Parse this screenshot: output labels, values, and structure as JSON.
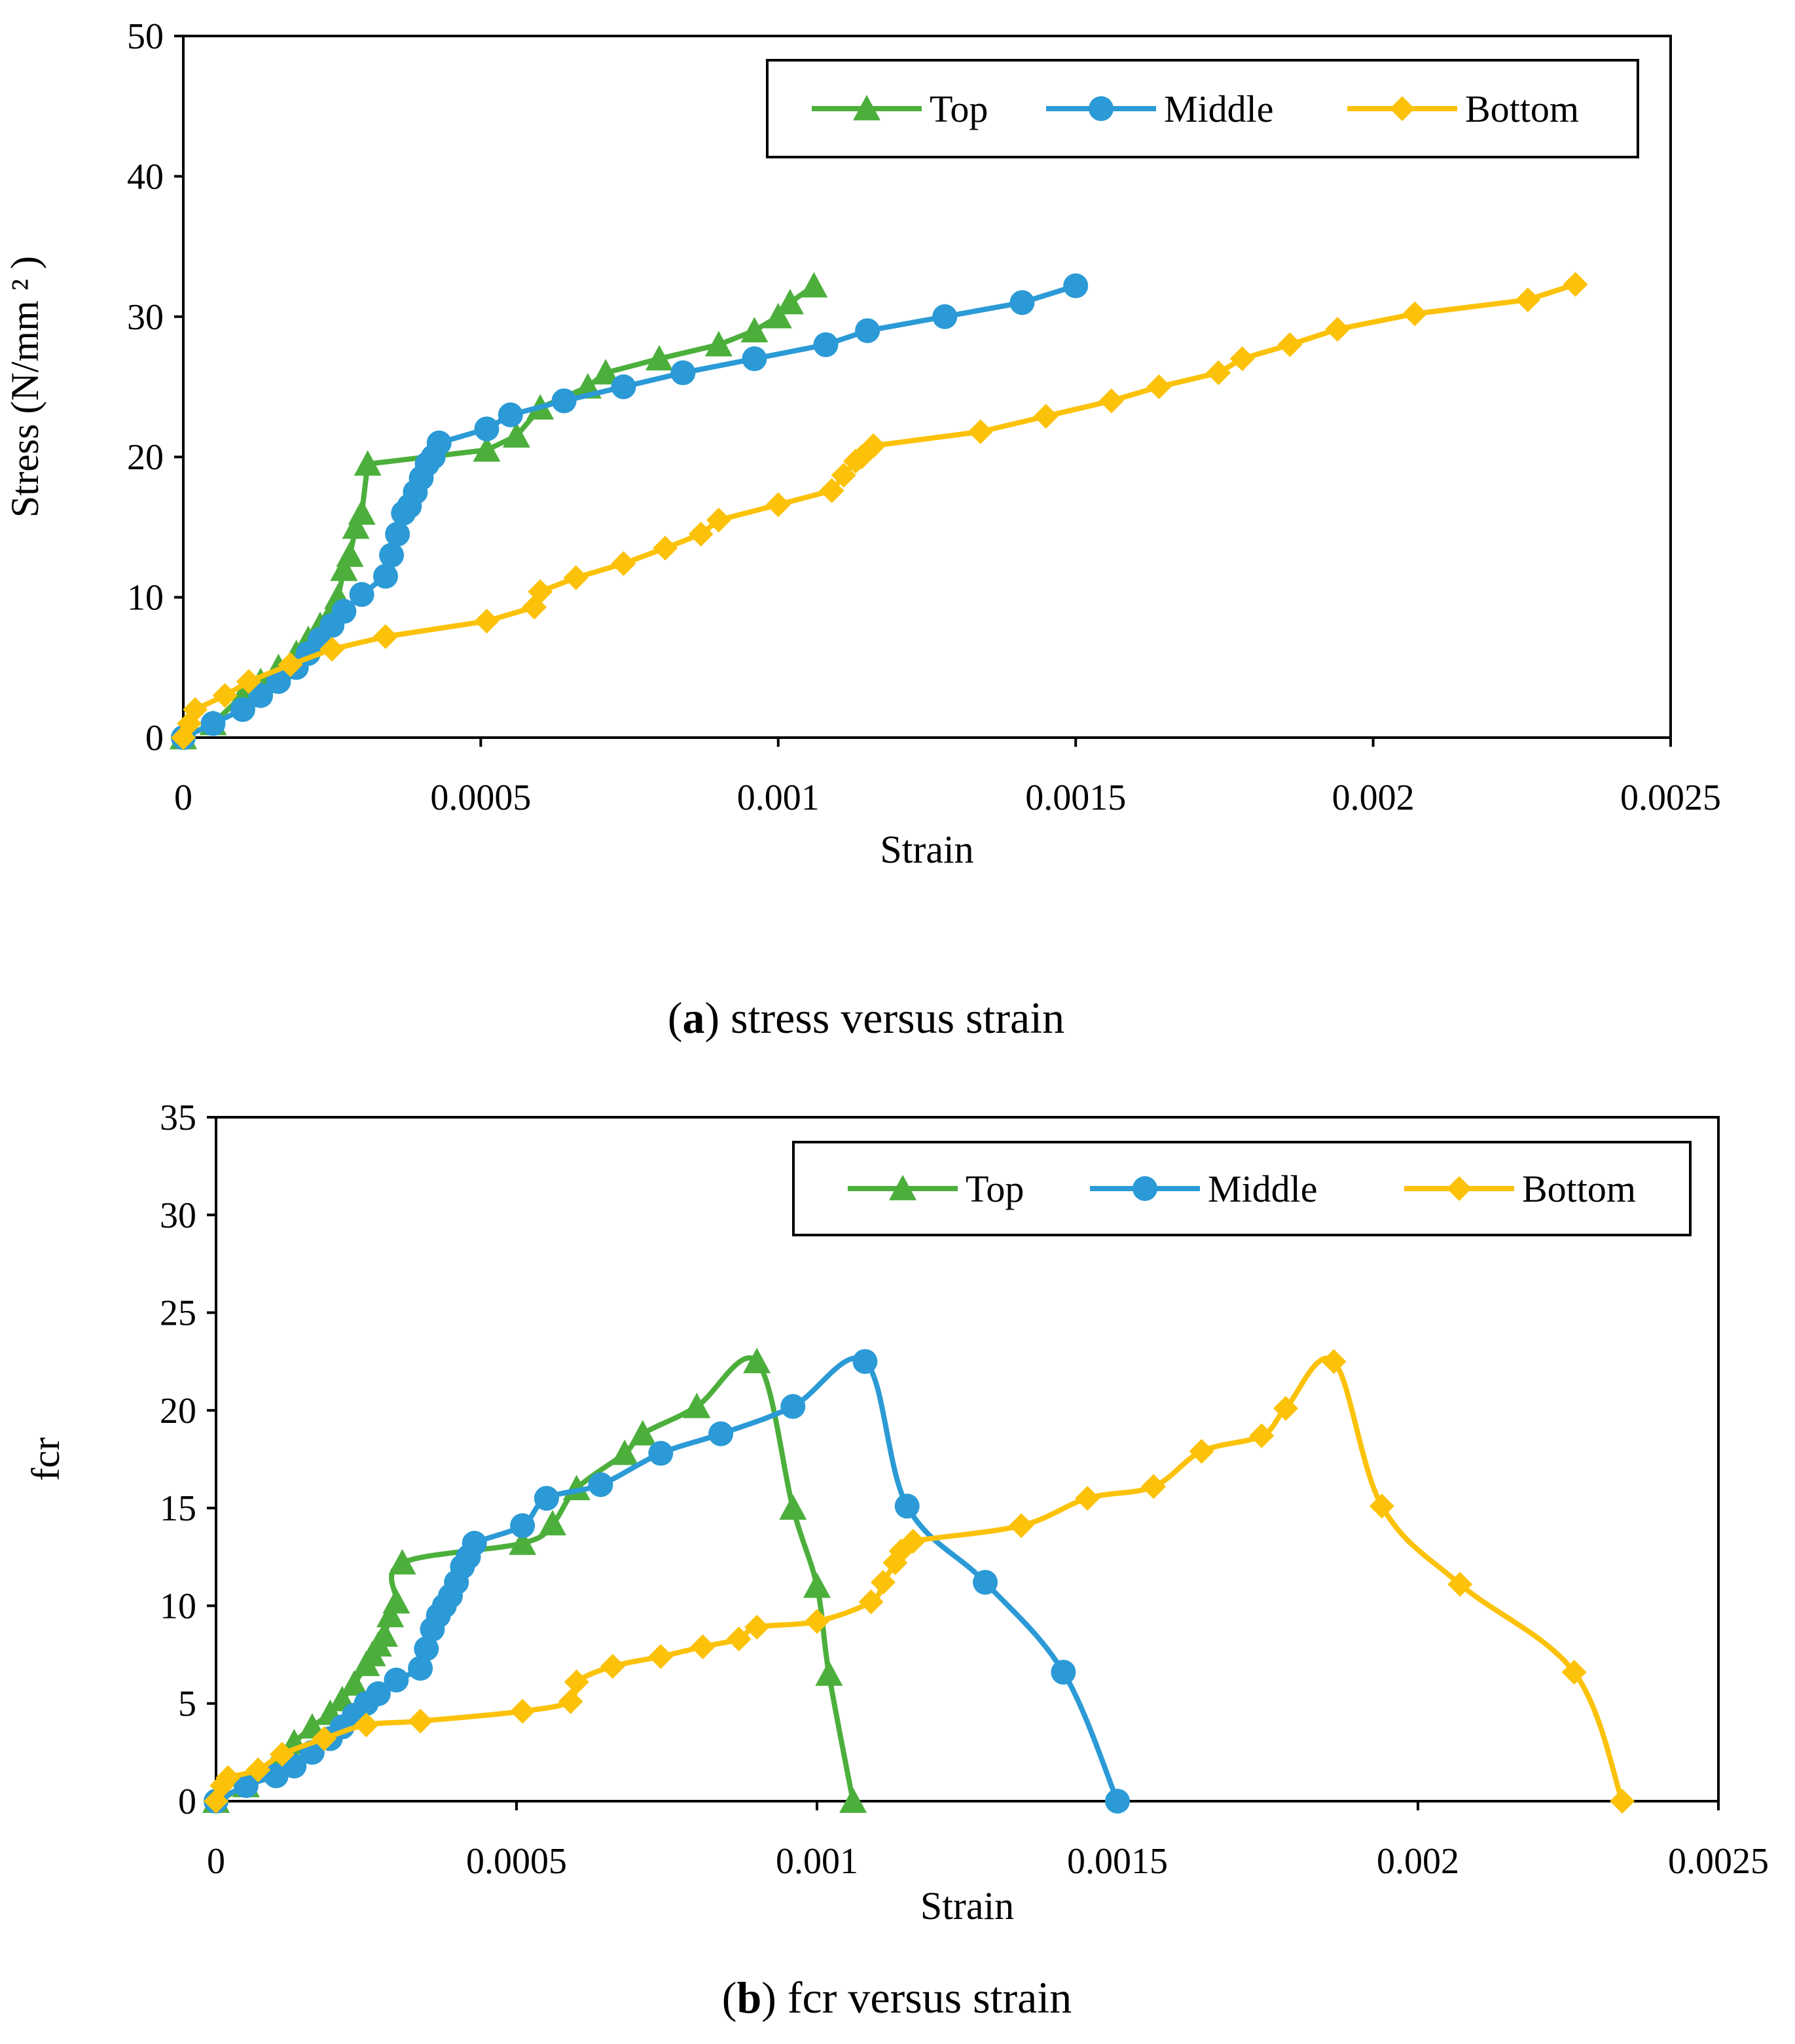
{
  "captions": {
    "a": {
      "letter": "a",
      "text": ") stress versus strain",
      "open": "("
    },
    "b": {
      "letter": "b",
      "text": ") fcr versus strain",
      "open": "("
    }
  },
  "colors": {
    "top": "#4caf3c",
    "middle": "#2b9ad6",
    "bottom": "#fcc20a"
  },
  "chart_data": [
    {
      "id": "a",
      "type": "line",
      "xlabel": "Strain",
      "ylabel": "Stress (N/mm ² )",
      "xlim": [
        0,
        0.0025
      ],
      "ylim": [
        0,
        50
      ],
      "xticks": [
        "0",
        "0.0005",
        "0.001",
        "0.0015",
        "0.002",
        "0.0025"
      ],
      "xtickvals": [
        0,
        0.0005,
        0.001,
        0.0015,
        0.002,
        0.0025
      ],
      "yticks": [
        "0",
        "10",
        "20",
        "30",
        "40",
        "50"
      ],
      "ytickvals": [
        0,
        10,
        20,
        30,
        40,
        50
      ],
      "legend": "top-right",
      "series": [
        {
          "name": "Top",
          "marker": "triangle",
          "smooth": false,
          "x": [
            0,
            5e-05,
            0.0001,
            0.00013,
            0.00016,
            0.00019,
            0.00021,
            0.00023,
            0.00025,
            0.00026,
            0.00027,
            0.00028,
            0.00029,
            0.0003,
            0.00031,
            0.00051,
            0.00056,
            0.0006,
            0.00068,
            0.00071,
            0.0008,
            0.0009,
            0.00096,
            0.001,
            0.00102,
            0.00106
          ],
          "y": [
            0,
            1,
            3,
            4,
            5,
            6,
            7,
            8,
            9,
            10,
            12,
            13,
            15,
            16,
            19.5,
            20.5,
            21.5,
            23.5,
            25,
            26,
            27,
            28,
            29,
            30,
            31,
            32.2
          ]
        },
        {
          "name": "Middle",
          "marker": "circle",
          "smooth": false,
          "x": [
            0,
            5e-05,
            0.0001,
            0.00013,
            0.00016,
            0.00019,
            0.00021,
            0.00023,
            0.00025,
            0.00027,
            0.0003,
            0.00034,
            0.00035,
            0.00036,
            0.00037,
            0.00038,
            0.00039,
            0.0004,
            0.00041,
            0.00042,
            0.00043,
            0.00051,
            0.00055,
            0.00064,
            0.00074,
            0.00084,
            0.00096,
            0.00108,
            0.00115,
            0.00128,
            0.00141,
            0.0015
          ],
          "y": [
            0,
            1,
            2,
            3,
            4,
            5,
            6,
            7,
            8,
            9,
            10.2,
            11.5,
            13,
            14.5,
            16,
            16.5,
            17.5,
            18.5,
            19.5,
            20,
            21,
            22,
            23,
            24,
            25,
            26,
            27,
            28,
            29,
            30,
            31,
            32.2
          ]
        },
        {
          "name": "Bottom",
          "marker": "diamond",
          "smooth": false,
          "x": [
            0,
            1e-05,
            2e-05,
            7e-05,
            0.00011,
            0.00018,
            0.00025,
            0.00034,
            0.00051,
            0.00059,
            0.0006,
            0.00066,
            0.00074,
            0.00081,
            0.00087,
            0.0009,
            0.001,
            0.00109,
            0.00111,
            0.00113,
            0.00114,
            0.00116,
            0.00134,
            0.00145,
            0.00156,
            0.00164,
            0.00174,
            0.00178,
            0.00186,
            0.00194,
            0.00207,
            0.00226,
            0.00234
          ],
          "y": [
            0,
            1,
            2,
            3,
            4,
            5.2,
            6.3,
            7.2,
            8.3,
            9.3,
            10.4,
            11.4,
            12.4,
            13.5,
            14.5,
            15.5,
            16.6,
            17.6,
            18.7,
            19.7,
            20,
            20.8,
            21.8,
            22.9,
            24,
            25,
            26,
            27,
            28,
            29.1,
            30.2,
            31.2,
            32.3
          ]
        }
      ]
    },
    {
      "id": "b",
      "type": "line",
      "xlabel": "Strain",
      "ylabel": "fcr",
      "xlim": [
        0,
        0.0025
      ],
      "ylim": [
        0,
        35
      ],
      "xticks": [
        "0",
        "0.0005",
        "0.001",
        "0.0015",
        "0.002",
        "0.0025"
      ],
      "xtickvals": [
        0,
        0.0005,
        0.001,
        0.0015,
        0.002,
        0.0025
      ],
      "yticks": [
        "0",
        "5",
        "10",
        "15",
        "20",
        "25",
        "30",
        "35"
      ],
      "ytickvals": [
        0,
        5,
        10,
        15,
        20,
        25,
        30,
        35
      ],
      "legend": "top-right",
      "series": [
        {
          "name": "Top",
          "marker": "triangle",
          "smooth": true,
          "x": [
            0,
            5e-05,
            0.0001,
            0.00013,
            0.00016,
            0.00019,
            0.00021,
            0.00023,
            0.00025,
            0.00026,
            0.00027,
            0.00028,
            0.00029,
            0.0003,
            0.00031,
            0.00051,
            0.00056,
            0.0006,
            0.00068,
            0.00071,
            0.0008,
            0.0009,
            0.00096,
            0.001,
            0.00102,
            0.00106
          ],
          "y": [
            0,
            0.8,
            2,
            3,
            3.8,
            4.5,
            5.2,
            6,
            7,
            7.5,
            8,
            8.5,
            9.5,
            10.2,
            12.2,
            13.2,
            14.2,
            16,
            17.8,
            18.8,
            20.2,
            22.5,
            15,
            11,
            6.5,
            0
          ]
        },
        {
          "name": "Middle",
          "marker": "circle",
          "smooth": true,
          "x": [
            0,
            5e-05,
            0.0001,
            0.00013,
            0.00016,
            0.00019,
            0.00021,
            0.00023,
            0.00025,
            0.00027,
            0.0003,
            0.00034,
            0.00035,
            0.00036,
            0.00037,
            0.00038,
            0.00039,
            0.0004,
            0.00041,
            0.00042,
            0.00043,
            0.00051,
            0.00055,
            0.00064,
            0.00074,
            0.00084,
            0.00096,
            0.00108,
            0.00115,
            0.00128,
            0.00141,
            0.0015
          ],
          "y": [
            0,
            0.8,
            1.3,
            1.8,
            2.5,
            3.2,
            3.8,
            4.4,
            5,
            5.5,
            6.2,
            6.8,
            7.8,
            8.8,
            9.5,
            10,
            10.5,
            11.2,
            12,
            12.5,
            13.2,
            14.1,
            15.5,
            16.2,
            17.8,
            18.8,
            20.2,
            22.5,
            15.1,
            11.2,
            6.6,
            0
          ]
        },
        {
          "name": "Bottom",
          "marker": "diamond",
          "smooth": true,
          "x": [
            0,
            1e-05,
            2e-05,
            7e-05,
            0.00011,
            0.00018,
            0.00025,
            0.00034,
            0.00051,
            0.00059,
            0.0006,
            0.00066,
            0.00074,
            0.00081,
            0.00087,
            0.0009,
            0.001,
            0.00109,
            0.00111,
            0.00113,
            0.00114,
            0.00116,
            0.00134,
            0.00145,
            0.00156,
            0.00164,
            0.00174,
            0.00178,
            0.00186,
            0.00194,
            0.00207,
            0.00226,
            0.00234
          ],
          "y": [
            0,
            0.8,
            1.2,
            1.6,
            2.4,
            3.2,
            3.9,
            4.1,
            4.6,
            5.1,
            6.1,
            6.9,
            7.4,
            7.9,
            8.3,
            8.9,
            9.2,
            10.2,
            11.2,
            12.2,
            12.8,
            13.3,
            14.1,
            15.5,
            16.1,
            17.9,
            18.7,
            20.1,
            22.5,
            15.1,
            11.1,
            6.6,
            0
          ]
        }
      ]
    }
  ]
}
